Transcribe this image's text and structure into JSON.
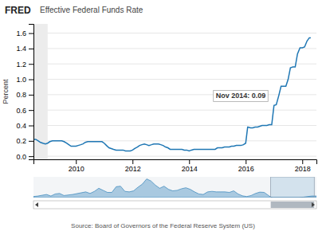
{
  "chart_data": [
    {
      "type": "line",
      "brand": "FRED",
      "title": "Effective Federal Funds Rate",
      "ylabel": "Percent",
      "source": "Source: Board of Governors of the Federal Reserve System (US)",
      "annotations": [
        {
          "text": "Nov 2014: 0.09",
          "x": 2014.83,
          "y": 0.09
        }
      ],
      "x": [
        2008.5,
        2008.58,
        2008.67,
        2008.75,
        2008.83,
        2008.92,
        2009.0,
        2009.08,
        2009.17,
        2009.25,
        2009.33,
        2009.42,
        2009.5,
        2009.58,
        2009.67,
        2009.75,
        2009.83,
        2009.92,
        2010.0,
        2010.08,
        2010.17,
        2010.25,
        2010.33,
        2010.42,
        2010.5,
        2010.58,
        2010.67,
        2010.75,
        2010.83,
        2010.92,
        2011.0,
        2011.08,
        2011.17,
        2011.25,
        2011.33,
        2011.42,
        2011.5,
        2011.58,
        2011.67,
        2011.75,
        2011.83,
        2011.92,
        2012.0,
        2012.08,
        2012.17,
        2012.25,
        2012.33,
        2012.42,
        2012.5,
        2012.58,
        2012.67,
        2012.75,
        2012.83,
        2012.92,
        2013.0,
        2013.08,
        2013.17,
        2013.25,
        2013.33,
        2013.42,
        2013.5,
        2013.58,
        2013.67,
        2013.75,
        2013.83,
        2013.92,
        2014.0,
        2014.08,
        2014.17,
        2014.25,
        2014.33,
        2014.42,
        2014.5,
        2014.58,
        2014.67,
        2014.75,
        2014.83,
        2014.92,
        2015.0,
        2015.08,
        2015.17,
        2015.25,
        2015.33,
        2015.42,
        2015.5,
        2015.58,
        2015.67,
        2015.75,
        2015.83,
        2015.92,
        2016.0,
        2016.07,
        2016.08,
        2016.17,
        2016.25,
        2016.33,
        2016.42,
        2016.5,
        2016.58,
        2016.67,
        2016.75,
        2016.83,
        2016.92,
        2017.0,
        2017.08,
        2017.17,
        2017.25,
        2017.33,
        2017.42,
        2017.5,
        2017.58,
        2017.67,
        2017.75,
        2017.83,
        2017.92,
        2018.0,
        2018.08,
        2018.17,
        2018.25,
        2018.3
      ],
      "values": [
        0.22,
        0.22,
        0.2,
        0.18,
        0.17,
        0.16,
        0.17,
        0.19,
        0.2,
        0.2,
        0.2,
        0.2,
        0.2,
        0.19,
        0.17,
        0.15,
        0.13,
        0.13,
        0.13,
        0.14,
        0.15,
        0.16,
        0.18,
        0.19,
        0.19,
        0.19,
        0.19,
        0.19,
        0.19,
        0.19,
        0.17,
        0.14,
        0.11,
        0.1,
        0.09,
        0.08,
        0.08,
        0.08,
        0.08,
        0.07,
        0.07,
        0.07,
        0.08,
        0.1,
        0.12,
        0.14,
        0.15,
        0.16,
        0.15,
        0.14,
        0.15,
        0.16,
        0.16,
        0.16,
        0.15,
        0.14,
        0.12,
        0.11,
        0.09,
        0.09,
        0.09,
        0.09,
        0.09,
        0.09,
        0.08,
        0.08,
        0.07,
        0.08,
        0.09,
        0.09,
        0.09,
        0.09,
        0.09,
        0.09,
        0.09,
        0.09,
        0.09,
        0.09,
        0.11,
        0.11,
        0.11,
        0.12,
        0.12,
        0.12,
        0.13,
        0.13,
        0.14,
        0.14,
        0.14,
        0.15,
        0.17,
        0.38,
        0.38,
        0.37,
        0.37,
        0.38,
        0.38,
        0.39,
        0.4,
        0.4,
        0.4,
        0.41,
        0.41,
        0.66,
        0.67,
        0.79,
        0.91,
        0.91,
        0.91,
        1.0,
        1.15,
        1.16,
        1.16,
        1.33,
        1.41,
        1.41,
        1.42,
        1.5,
        1.54,
        1.54
      ],
      "shaded_x": [
        2008.5,
        2009.0
      ],
      "xlim": [
        2008.5,
        2018.5
      ],
      "xticks": [
        2010,
        2012,
        2014,
        2016,
        2018
      ],
      "ylim": [
        -0.04,
        1.72
      ],
      "yticks": [
        {
          "value": 0.0,
          "label": "0.0"
        },
        0.2,
        0.4,
        0.6,
        0.8,
        {
          "value": 1.0,
          "label": "1.0"
        },
        1.2,
        1.4,
        1.6
      ],
      "grid": true
    },
    {
      "type": "area",
      "x": [
        1954,
        1955,
        1957,
        1958,
        1959,
        1960,
        1961,
        1963,
        1966,
        1967,
        1968,
        1969,
        1970,
        1971,
        1972,
        1973,
        1974,
        1975,
        1976,
        1977,
        1978,
        1979,
        1980,
        1981,
        1982,
        1983,
        1984,
        1985,
        1986,
        1987,
        1988,
        1989,
        1990,
        1991,
        1992,
        1993,
        1994,
        1995,
        1996,
        1997,
        1998,
        1999,
        2000,
        2001,
        2002,
        2003,
        2004,
        2005,
        2006,
        2007,
        2008,
        2008.5,
        2009,
        2015,
        2016,
        2017,
        2018,
        2019
      ],
      "values": [
        1.0,
        1.5,
        3.0,
        1.5,
        3.5,
        4.0,
        2.0,
        3.0,
        5.5,
        4.0,
        6.0,
        9.0,
        7.0,
        5.0,
        5.0,
        10.5,
        11.0,
        6.0,
        5.5,
        6.5,
        10.0,
        13.0,
        18.0,
        16.0,
        12.0,
        9.0,
        11.0,
        8.0,
        6.5,
        7.0,
        8.5,
        9.5,
        8.0,
        5.5,
        3.5,
        3.0,
        5.5,
        6.0,
        5.5,
        5.5,
        5.5,
        5.0,
        6.5,
        3.5,
        1.7,
        1.0,
        2.0,
        4.0,
        5.3,
        5.0,
        2.0,
        0.5,
        0.12,
        0.12,
        0.4,
        1.0,
        1.5,
        1.5
      ],
      "xlim": [
        1954,
        2019
      ],
      "ylim": [
        0,
        20
      ],
      "tick_labels": false
    }
  ]
}
